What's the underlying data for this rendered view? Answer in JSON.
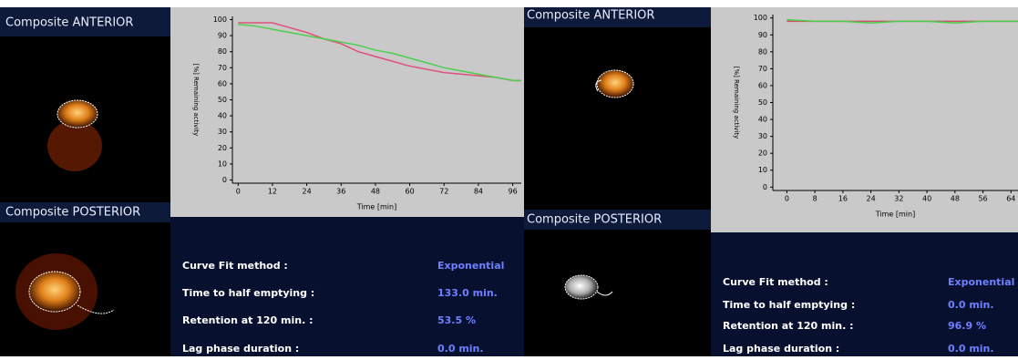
{
  "panels": [
    {
      "anterior_label": "Composite ANTERIOR",
      "posterior_label": "Composite POSTERIOR",
      "stats": [
        {
          "label": "Curve Fit method :",
          "value": "Exponential"
        },
        {
          "label": "Time to half emptying :",
          "value": "133.0 min."
        },
        {
          "label": "Retention at 120 min. :",
          "value": "53.5 %"
        },
        {
          "label": "Lag phase duration :",
          "value": "0.0 min."
        }
      ]
    },
    {
      "anterior_label": "Composite ANTERIOR",
      "posterior_label": "Composite POSTERIOR",
      "stats": [
        {
          "label": "Curve Fit method :",
          "value": "Exponential"
        },
        {
          "label": "Time to half emptying :",
          "value": "0.0 min."
        },
        {
          "label": "Retention at 120 min. :",
          "value": "96.9 %"
        },
        {
          "label": "Lag phase duration :",
          "value": "0.0 min."
        }
      ]
    }
  ],
  "chart_data": [
    {
      "type": "line",
      "x_label": "Time [min]",
      "y_label": "[%] Remaining activity",
      "x": [
        0,
        6,
        12,
        18,
        24,
        30,
        36,
        42,
        48,
        54,
        60,
        66,
        72,
        78,
        84,
        90,
        96,
        99
      ],
      "series": [
        {
          "color": "#e0507a",
          "values": [
            98,
            98,
            98,
            95,
            92,
            88,
            85,
            80,
            77,
            74,
            71,
            69,
            67,
            66,
            65,
            64,
            62,
            62
          ]
        },
        {
          "color": "#4ccf4c",
          "values": [
            97,
            96,
            94,
            92,
            90,
            88,
            86,
            84,
            81,
            79,
            76,
            73,
            70,
            68,
            66,
            64,
            62,
            62
          ]
        }
      ],
      "xlim": [
        -2,
        99
      ],
      "ylim": [
        -2,
        102
      ],
      "xticks": [
        0,
        12,
        24,
        36,
        48,
        60,
        72,
        84,
        96
      ],
      "yticks": [
        0,
        10,
        20,
        30,
        40,
        50,
        60,
        70,
        80,
        90,
        100
      ]
    },
    {
      "type": "line",
      "x_label": "Time [min]",
      "y_label": "[%] Remaining activity",
      "x": [
        0,
        8,
        16,
        24,
        32,
        40,
        48,
        56,
        64,
        66
      ],
      "series": [
        {
          "color": "#d0506a",
          "values": [
            98,
            98,
            98,
            98,
            98,
            98,
            98,
            98,
            98,
            98
          ]
        },
        {
          "color": "#4ccf4c",
          "values": [
            99,
            98,
            98,
            97,
            98,
            98,
            97,
            98,
            98,
            98
          ]
        }
      ],
      "xlim": [
        -4,
        66
      ],
      "ylim": [
        -2,
        102
      ],
      "xticks": [
        0,
        8,
        16,
        24,
        32,
        40,
        48,
        56,
        64
      ],
      "yticks": [
        0,
        10,
        20,
        30,
        40,
        50,
        60,
        70,
        80,
        90,
        100
      ]
    }
  ]
}
